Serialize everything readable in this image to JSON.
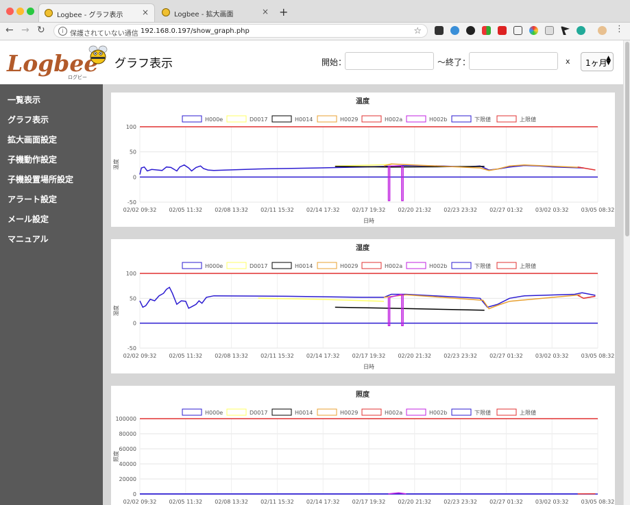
{
  "browser": {
    "tabs": [
      {
        "title": "Logbee - グラフ表示",
        "active": true
      },
      {
        "title": "Logbee - 拡大画面",
        "active": false
      }
    ],
    "security_label": "保護されていない通信",
    "url": "192.168.0.197/show_graph.php"
  },
  "header": {
    "logo": "Logbee",
    "logo_sub": "ログビー",
    "title": "グラフ表示",
    "start_label": "開始：",
    "start_value": "",
    "end_label": "〜終了：",
    "end_value": "",
    "x_label": "x",
    "range_value": "1ヶ月"
  },
  "sidebar": {
    "items": [
      "一覧表示",
      "グラフ表示",
      "拡大画面設定",
      "子機動作設定",
      "子機設置場所設定",
      "アラート設定",
      "メール設定",
      "マニュアル"
    ]
  },
  "colors": {
    "H000e": "#2b1bd1",
    "D0017": "#ffff66",
    "H0014": "#000000",
    "H0029": "#e8a030",
    "H002a": "#e03030",
    "H002b": "#c020e0",
    "lower": "#2b1bd1",
    "upper": "#e03030"
  },
  "legend": [
    "H000e",
    "D0017",
    "H0014",
    "H0029",
    "H002a",
    "H002b",
    "下限値",
    "上限値"
  ],
  "chart_data": [
    {
      "type": "line",
      "title": "温度",
      "ylabel": "温度",
      "xlabel": "日時",
      "ylim": [
        -50,
        100
      ],
      "yticks": [
        100,
        50,
        0,
        -50
      ],
      "xticks": [
        "02/02 09:32",
        "02/05 11:32",
        "02/08 13:32",
        "02/11 15:32",
        "02/14 17:32",
        "02/17 19:32",
        "02/20 21:32",
        "02/23 23:32",
        "02/27 01:32",
        "03/02 03:32",
        "03/05 08:32"
      ],
      "lower_limit": 0,
      "upper_limit": 100,
      "series": [
        {
          "name": "H000e",
          "points": [
            [
              0,
              5
            ],
            [
              0.1,
              18
            ],
            [
              0.3,
              20
            ],
            [
              0.5,
              12
            ],
            [
              0.8,
              15
            ],
            [
              1.2,
              14
            ],
            [
              1.5,
              13
            ],
            [
              1.8,
              20
            ],
            [
              2.1,
              19
            ],
            [
              2.5,
              12
            ],
            [
              2.7,
              20
            ],
            [
              3.0,
              24
            ],
            [
              3.3,
              18
            ],
            [
              3.5,
              12
            ],
            [
              3.8,
              19
            ],
            [
              4.1,
              22
            ],
            [
              4.3,
              17
            ],
            [
              4.6,
              14
            ],
            [
              5,
              13
            ],
            [
              8,
              16
            ],
            [
              12,
              18
            ],
            [
              15,
              20
            ],
            [
              16.5,
              21
            ],
            [
              18,
              23
            ],
            [
              20.5,
              22
            ],
            [
              22,
              20
            ],
            [
              23,
              22
            ],
            [
              23.6,
              14
            ],
            [
              24.2,
              16
            ],
            [
              25,
              20
            ],
            [
              26,
              23
            ],
            [
              27,
              22
            ],
            [
              28,
              20
            ],
            [
              30,
              18
            ]
          ]
        },
        {
          "name": "D0017",
          "points": [
            [
              13.2,
              22
            ],
            [
              16,
              24
            ],
            [
              17,
              25
            ]
          ]
        },
        {
          "name": "H0014",
          "points": [
            [
              13.2,
              21
            ],
            [
              17,
              20
            ],
            [
              23.3,
              21
            ]
          ]
        },
        {
          "name": "H0029",
          "points": [
            [
              16.5,
              22
            ],
            [
              17,
              26
            ],
            [
              23,
              18
            ],
            [
              23.6,
              13
            ],
            [
              24.2,
              16
            ],
            [
              25,
              22
            ],
            [
              26,
              24
            ],
            [
              29.8,
              19
            ]
          ]
        },
        {
          "name": "H002a",
          "points": [
            [
              29.6,
              20
            ],
            [
              30.8,
              14
            ]
          ]
        },
        {
          "name": "H002b",
          "points": [
            [
              16.8,
              22
            ],
            [
              16.8,
              -47
            ],
            [
              16.9,
              -47
            ],
            [
              16.9,
              22
            ],
            [
              17.7,
              22
            ],
            [
              17.7,
              -47
            ],
            [
              17.8,
              -47
            ],
            [
              17.8,
              22
            ]
          ]
        }
      ]
    },
    {
      "type": "line",
      "title": "湿度",
      "ylabel": "湿度",
      "xlabel": "日時",
      "ylim": [
        -50,
        100
      ],
      "yticks": [
        100,
        50,
        0,
        -50
      ],
      "xticks": [
        "02/02 09:32",
        "02/05 11:32",
        "02/08 13:32",
        "02/11 15:32",
        "02/14 17:32",
        "02/17 19:32",
        "02/20 21:32",
        "02/23 23:32",
        "02/27 01:32",
        "03/02 03:32",
        "03/05 08:32"
      ],
      "lower_limit": 0,
      "upper_limit": 100,
      "series": [
        {
          "name": "H000e",
          "points": [
            [
              0,
              45
            ],
            [
              0.2,
              32
            ],
            [
              0.4,
              35
            ],
            [
              0.7,
              48
            ],
            [
              1.0,
              45
            ],
            [
              1.3,
              55
            ],
            [
              1.6,
              60
            ],
            [
              1.8,
              68
            ],
            [
              2.0,
              72
            ],
            [
              2.2,
              60
            ],
            [
              2.5,
              38
            ],
            [
              2.8,
              45
            ],
            [
              3.1,
              44
            ],
            [
              3.3,
              30
            ],
            [
              3.5,
              33
            ],
            [
              3.8,
              38
            ],
            [
              4.0,
              45
            ],
            [
              4.2,
              40
            ],
            [
              4.5,
              52
            ],
            [
              5,
              55
            ],
            [
              10,
              54
            ],
            [
              15,
              52
            ],
            [
              16.5,
              52
            ],
            [
              17,
              58
            ],
            [
              18,
              58
            ],
            [
              23,
              50
            ],
            [
              23.5,
              32
            ],
            [
              24.2,
              38
            ],
            [
              25,
              50
            ],
            [
              26,
              55
            ],
            [
              29.4,
              58
            ],
            [
              29.9,
              61
            ],
            [
              30.8,
              56
            ]
          ]
        },
        {
          "name": "D0017",
          "points": [
            [
              8,
              50
            ],
            [
              12,
              48
            ],
            [
              16.5,
              44
            ]
          ]
        },
        {
          "name": "H0014",
          "points": [
            [
              13.2,
              32
            ],
            [
              17,
              30
            ],
            [
              23.3,
              26
            ]
          ]
        },
        {
          "name": "H0029",
          "points": [
            [
              16.5,
              52
            ],
            [
              18,
              57
            ],
            [
              23.2,
              46
            ],
            [
              23.6,
              29
            ],
            [
              24.2,
              36
            ],
            [
              25,
              44
            ],
            [
              29.8,
              57
            ]
          ]
        },
        {
          "name": "H002a",
          "points": [
            [
              29.6,
              56
            ],
            [
              30,
              50
            ],
            [
              30.8,
              54
            ]
          ]
        },
        {
          "name": "H002b",
          "points": [
            [
              16.8,
              52
            ],
            [
              16.8,
              -5
            ],
            [
              16.9,
              -5
            ],
            [
              16.9,
              52
            ],
            [
              17.7,
              58
            ],
            [
              17.7,
              -5
            ],
            [
              17.8,
              -5
            ],
            [
              17.8,
              58
            ]
          ]
        }
      ]
    },
    {
      "type": "line",
      "title": "照度",
      "ylabel": "照度",
      "xlabel": "",
      "ylim": [
        0,
        100000
      ],
      "yticks": [
        100000,
        80000,
        60000,
        40000,
        20000,
        0
      ],
      "xticks": [
        "02/02 09:32",
        "02/05 11:32",
        "02/08 13:32",
        "02/11 15:32",
        "02/14 17:32",
        "02/17 19:32",
        "02/20 21:32",
        "02/23 23:32",
        "02/27 01:32",
        "03/02 03:32",
        "03/05 08:32"
      ],
      "lower_limit": 0,
      "upper_limit": 100000,
      "series": [
        {
          "name": "H000e",
          "points": [
            [
              0,
              200
            ],
            [
              10,
              300
            ],
            [
              20,
              300
            ],
            [
              30.8,
              300
            ]
          ]
        },
        {
          "name": "H002b",
          "points": [
            [
              16.8,
              300
            ],
            [
              17.5,
              1500
            ],
            [
              18,
              300
            ]
          ]
        },
        {
          "name": "H002a",
          "points": [
            [
              29.6,
              300
            ],
            [
              30.8,
              400
            ]
          ]
        }
      ]
    }
  ]
}
